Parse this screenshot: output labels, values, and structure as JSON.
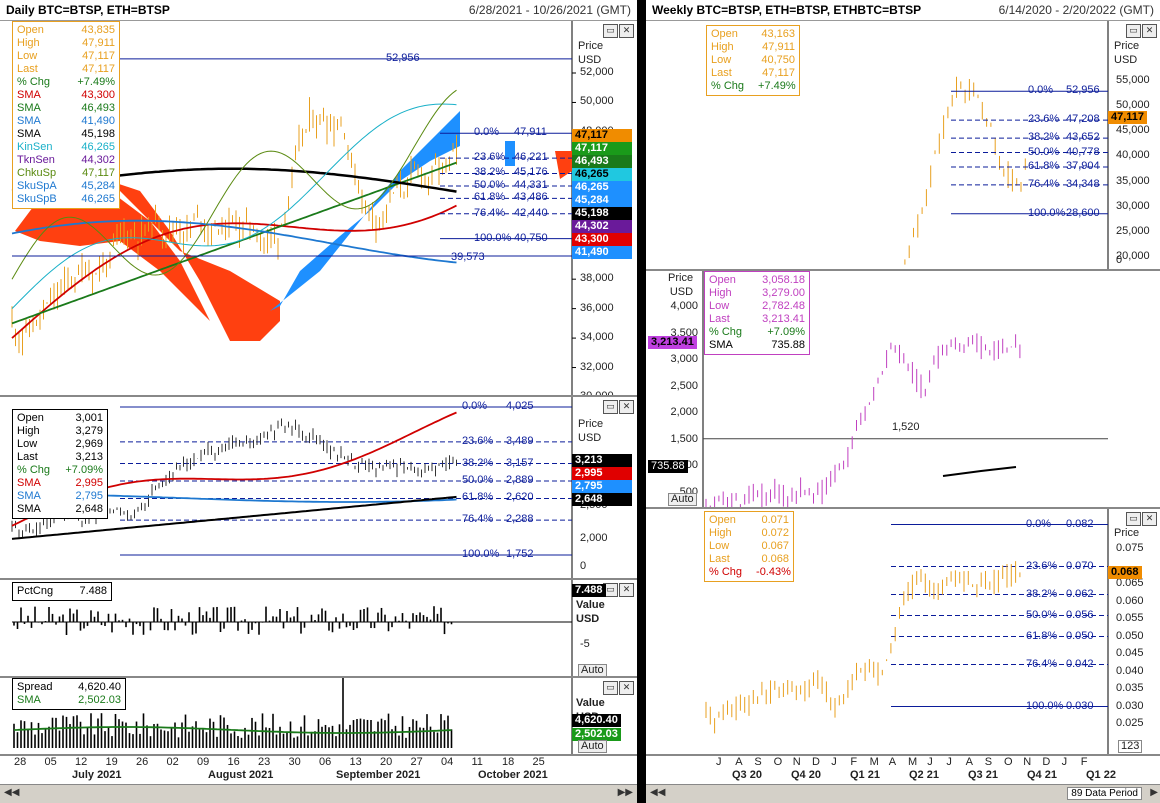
{
  "left": {
    "title": "Daily BTC=BTSP, ETH=BTSP",
    "date_range": "6/28/2021 - 10/26/2021 (GMT)",
    "axis_title": [
      "Price",
      "USD"
    ],
    "price_ticks": [
      "52,000",
      "50,000",
      "48,000",
      "46,000",
      "44,000",
      "42,000",
      "40,000",
      "38,000",
      "36,000",
      "34,000",
      "32,000",
      "30,000"
    ],
    "legend": [
      {
        "k": "Open",
        "v": "43,835",
        "c": "#e8a020"
      },
      {
        "k": "High",
        "v": "47,911",
        "c": "#e8a020"
      },
      {
        "k": "Low",
        "v": "47,117",
        "c": "#e8a020"
      },
      {
        "k": "Last",
        "v": "47,117",
        "c": "#e8a020"
      },
      {
        "k": "% Chg",
        "v": "+7.49%",
        "c": "#1a7a1a"
      },
      {
        "k": "SMA",
        "v": "43,300",
        "c": "#d00000"
      },
      {
        "k": "SMA",
        "v": "46,493",
        "c": "#1a7a1a"
      },
      {
        "k": "SMA",
        "v": "41,490",
        "c": "#1e78d0"
      },
      {
        "k": "SMA",
        "v": "45,198",
        "c": "#000000"
      },
      {
        "k": "KinSen",
        "v": "46,265",
        "c": "#18b0c8"
      },
      {
        "k": "TknSen",
        "v": "44,302",
        "c": "#6a1a9a"
      },
      {
        "k": "ChkuSp",
        "v": "47,117",
        "c": "#5a8a10"
      },
      {
        "k": "SkuSpA",
        "v": "45,284",
        "c": "#1e78d0"
      },
      {
        "k": "SkuSpB",
        "v": "46,265",
        "c": "#1e78d0"
      }
    ],
    "fib_top": {
      "high_label": "52,956",
      "low_label": "39,573",
      "levels": [
        "0.0%",
        "23.6%",
        "38.2%",
        "50.0%",
        "61.8%",
        "76.4%",
        "100.0%"
      ],
      "values": [
        "47,911",
        "46,221",
        "45,176",
        "44,331",
        "43,486",
        "42,440",
        "40,750"
      ]
    },
    "right_badges": [
      {
        "v": "47,117",
        "bg": "#f08c00",
        "fg": "#000"
      },
      {
        "v": "47,117",
        "bg": "#1a9a1a",
        "fg": "#fff"
      },
      {
        "v": "46,493",
        "bg": "#1a7a1a",
        "fg": "#fff"
      },
      {
        "v": "46,265",
        "bg": "#20c8e0",
        "fg": "#000"
      },
      {
        "v": "46,265",
        "bg": "#1e90ff",
        "fg": "#fff"
      },
      {
        "v": "45,284",
        "bg": "#1e90ff",
        "fg": "#fff"
      },
      {
        "v": "45,198",
        "bg": "#000000",
        "fg": "#fff"
      },
      {
        "v": "44,302",
        "bg": "#6a1a9a",
        "fg": "#fff"
      },
      {
        "v": "43,300",
        "bg": "#e00000",
        "fg": "#fff"
      },
      {
        "v": "41,490",
        "bg": "#1e90ff",
        "fg": "#fff"
      }
    ],
    "eth_legend": [
      {
        "k": "Open",
        "v": "3,001"
      },
      {
        "k": "High",
        "v": "3,279"
      },
      {
        "k": "Low",
        "v": "2,969"
      },
      {
        "k": "Last",
        "v": "3,213"
      },
      {
        "k": "% Chg",
        "v": "+7.09%",
        "c": "#1a7a1a"
      },
      {
        "k": "SMA",
        "v": "2,995",
        "c": "#d00000"
      },
      {
        "k": "SMA",
        "v": "2,795",
        "c": "#1e78d0"
      },
      {
        "k": "SMA",
        "v": "2,648"
      }
    ],
    "eth_ticks": [
      "2,500",
      "2,000",
      "0"
    ],
    "eth_fib": {
      "levels": [
        "0.0%",
        "23.6%",
        "38.2%",
        "50.0%",
        "61.8%",
        "76.4%",
        "100.0%"
      ],
      "values": [
        "4,025",
        "3,489",
        "3,157",
        "2,889",
        "2,620",
        "2,288",
        "1,752"
      ]
    },
    "eth_badges": [
      {
        "v": "3,213",
        "bg": "#000",
        "fg": "#fff"
      },
      {
        "v": "2,995",
        "bg": "#e00000",
        "fg": "#fff"
      },
      {
        "v": "2,795",
        "bg": "#1e90ff",
        "fg": "#fff"
      },
      {
        "v": "2,648",
        "bg": "#000",
        "fg": "#fff"
      }
    ],
    "pct": {
      "label": "PctCng",
      "value": "7.488",
      "axis_title": [
        "Value",
        "USD"
      ],
      "tick": "-5",
      "badge": "7.488",
      "auto": "Auto"
    },
    "spread": {
      "label": "Spread",
      "value": "4,620.40",
      "sma_label": "SMA",
      "sma": "2,502.03",
      "axis_title": [
        "Value",
        "USD"
      ],
      "badge1": "4,620.40",
      "badge2": "2,502.03",
      "auto": "Auto"
    },
    "x_days": [
      "28",
      "05",
      "12",
      "19",
      "26",
      "02",
      "09",
      "16",
      "23",
      "30",
      "06",
      "13",
      "20",
      "27",
      "04",
      "11",
      "18",
      "25"
    ],
    "x_months": [
      "July 2021",
      "August 2021",
      "September 2021",
      "October 2021"
    ]
  },
  "right": {
    "title": "Weekly BTC=BTSP, ETH=BTSP, ETHBTC=BTSP",
    "date_range": "6/14/2020 - 2/20/2022 (GMT)",
    "btc_legend": [
      {
        "k": "Open",
        "v": "43,163"
      },
      {
        "k": "High",
        "v": "47,911"
      },
      {
        "k": "Low",
        "v": "40,750"
      },
      {
        "k": "Last",
        "v": "47,117"
      },
      {
        "k": "% Chg",
        "v": "+7.49%",
        "c": "#1a7a1a"
      }
    ],
    "btc_ticks": [
      "55,000",
      "50,000",
      "45,000",
      "40,000",
      "35,000",
      "30,000",
      "25,000",
      "20,000",
      "0"
    ],
    "btc_fib": {
      "levels": [
        "0.0%",
        "23.6%",
        "38.2%",
        "50.0%",
        "61.8%",
        "76.4%",
        "100.0%"
      ],
      "values": [
        "52,956",
        "47,208",
        "43,652",
        "40,778",
        "37,904",
        "34,348",
        "28,600"
      ]
    },
    "btc_badge": "47,117",
    "eth_legend": [
      {
        "k": "Open",
        "v": "3,058.18"
      },
      {
        "k": "High",
        "v": "3,279.00"
      },
      {
        "k": "Low",
        "v": "2,782.48"
      },
      {
        "k": "Last",
        "v": "3,213.41"
      },
      {
        "k": "% Chg",
        "v": "+7.09%",
        "c": "#1a7a1a"
      },
      {
        "k": "SMA",
        "v": "735.88",
        "c": "#000"
      }
    ],
    "eth_ticks": [
      "4,000",
      "3,500",
      "3,000",
      "2,500",
      "2,000",
      "1,500",
      "1,000",
      "500"
    ],
    "eth_line_label": "1,520",
    "eth_badge": "3,213.41",
    "eth_sma_badge": "735.88",
    "eth_auto": "Auto",
    "ratio_legend": [
      {
        "k": "Open",
        "v": "0.071"
      },
      {
        "k": "High",
        "v": "0.072"
      },
      {
        "k": "Low",
        "v": "0.067"
      },
      {
        "k": "Last",
        "v": "0.068"
      },
      {
        "k": "% Chg",
        "v": "-0.43%",
        "c": "#d00000"
      }
    ],
    "ratio_ticks": [
      "0.075",
      "0.065",
      "0.060",
      "0.055",
      "0.050",
      "0.045",
      "0.040",
      "0.035",
      "0.030",
      "0.025"
    ],
    "ratio_fib": {
      "levels": [
        "0.0%",
        "23.6%",
        "38.2%",
        "50.0%",
        "61.8%",
        "76.4%",
        "100.0%"
      ],
      "values": [
        "0.082",
        "0.070",
        "0.062",
        "0.056",
        "0.050",
        "0.042",
        "0.030"
      ]
    },
    "ratio_badge": "0.068",
    "ratio_corner": "123",
    "x_letters": [
      "J",
      "A",
      "S",
      "O",
      "N",
      "D",
      "J",
      "F",
      "M",
      "A",
      "M",
      "J",
      "J",
      "A",
      "S",
      "O",
      "N",
      "D",
      "J",
      "F"
    ],
    "x_quarters": [
      "Q3 20",
      "Q4 20",
      "Q1 21",
      "Q2 21",
      "Q3 21",
      "Q4 21",
      "Q1 22"
    ],
    "status": "89 Data Period"
  },
  "axis_title_price": [
    "Price",
    "USD"
  ],
  "axis_title_price_only": [
    "Price"
  ]
}
